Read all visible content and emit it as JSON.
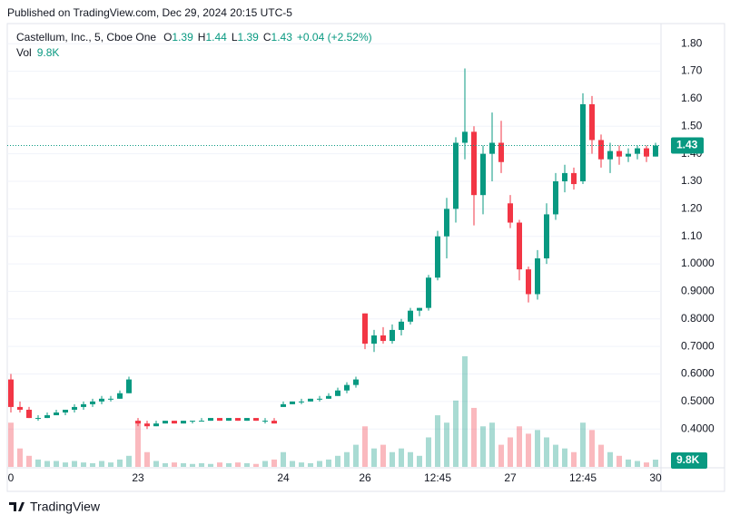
{
  "published": "Published on TradingView.com, Dec 29, 2024 20:15 UTC-5",
  "footer": "TradingView",
  "chart_data": {
    "type": "candlestick",
    "title": "Castellum, Inc., 5, Cboe One",
    "legend": [
      {
        "label": "O",
        "value": 1.39
      },
      {
        "label": "H",
        "value": 1.44
      },
      {
        "label": "L",
        "value": 1.39
      },
      {
        "label": "C",
        "value": 1.43
      }
    ],
    "change": "+0.04 (+2.52%)",
    "volume_title": "Vol",
    "volume_label": "9.8K",
    "up_color": "#089981",
    "down_color": "#f23645",
    "ylim": [
      0.18,
      1.86
    ],
    "yticks": [
      {
        "value": 0.4,
        "label": "0.4000"
      },
      {
        "value": 0.5,
        "label": "0.5000"
      },
      {
        "value": 0.6,
        "label": "0.6000"
      },
      {
        "value": 0.7,
        "label": "0.7000"
      },
      {
        "value": 0.8,
        "label": "0.8000"
      },
      {
        "value": 0.9,
        "label": "0.9000"
      },
      {
        "value": 1.0,
        "label": "1.0000"
      },
      {
        "value": 1.1,
        "label": "1.10"
      },
      {
        "value": 1.2,
        "label": "1.20"
      },
      {
        "value": 1.3,
        "label": "1.30"
      },
      {
        "value": 1.4,
        "label": "1.40"
      },
      {
        "value": 1.5,
        "label": "1.50"
      },
      {
        "value": 1.6,
        "label": "1.60"
      },
      {
        "value": 1.7,
        "label": "1.70"
      },
      {
        "value": 1.8,
        "label": "1.80"
      }
    ],
    "grid": true,
    "categories": [
      "0",
      null,
      null,
      null,
      null,
      null,
      null,
      null,
      null,
      null,
      null,
      null,
      null,
      null,
      "23",
      null,
      null,
      null,
      null,
      null,
      null,
      null,
      null,
      null,
      null,
      null,
      null,
      null,
      null,
      null,
      "24",
      null,
      null,
      null,
      null,
      null,
      null,
      null,
      null,
      "26",
      null,
      null,
      null,
      null,
      null,
      null,
      null,
      "12:45",
      null,
      null,
      null,
      null,
      null,
      null,
      null,
      "27",
      null,
      null,
      null,
      null,
      null,
      null,
      null,
      "12:45",
      null,
      null,
      null,
      null,
      null,
      null,
      null,
      "30"
    ],
    "open": [
      0.58,
      0.48,
      0.47,
      0.44,
      0.44,
      0.45,
      0.46,
      0.47,
      0.48,
      0.49,
      0.5,
      0.51,
      0.51,
      0.53,
      0.43,
      0.42,
      0.41,
      0.42,
      0.43,
      0.42,
      0.43,
      0.43,
      0.43,
      0.44,
      0.43,
      0.44,
      0.43,
      0.44,
      0.43,
      0.43,
      0.48,
      0.49,
      0.5,
      0.5,
      0.51,
      0.51,
      0.52,
      0.54,
      0.56,
      0.82,
      0.71,
      0.74,
      0.72,
      0.76,
      0.79,
      0.83,
      0.84,
      0.95,
      1.1,
      1.2,
      1.44,
      1.48,
      1.25,
      1.4,
      1.44,
      1.22,
      1.15,
      0.98,
      0.89,
      1.02,
      1.18,
      1.3,
      1.33,
      1.3,
      1.58,
      1.45,
      1.38,
      1.41,
      1.39,
      1.4,
      1.42,
      1.39
    ],
    "high": [
      0.6,
      0.5,
      0.48,
      0.45,
      0.46,
      0.47,
      0.47,
      0.49,
      0.5,
      0.51,
      0.52,
      0.52,
      0.54,
      0.59,
      0.44,
      0.43,
      0.43,
      0.43,
      0.43,
      0.43,
      0.43,
      0.44,
      0.44,
      0.44,
      0.44,
      0.44,
      0.44,
      0.44,
      0.44,
      0.44,
      0.5,
      0.5,
      0.51,
      0.51,
      0.52,
      0.53,
      0.55,
      0.57,
      0.59,
      0.82,
      0.76,
      0.77,
      0.78,
      0.8,
      0.84,
      0.84,
      0.96,
      1.12,
      1.24,
      1.46,
      1.71,
      1.5,
      1.43,
      1.55,
      1.52,
      1.25,
      1.16,
      0.99,
      1.05,
      1.22,
      1.33,
      1.36,
      1.35,
      1.62,
      1.61,
      1.47,
      1.44,
      1.43,
      1.42,
      1.43,
      1.43,
      1.44
    ],
    "low": [
      0.46,
      0.46,
      0.44,
      0.43,
      0.44,
      0.45,
      0.45,
      0.46,
      0.47,
      0.48,
      0.49,
      0.5,
      0.51,
      0.53,
      0.41,
      0.4,
      0.41,
      0.42,
      0.42,
      0.42,
      0.42,
      0.43,
      0.43,
      0.43,
      0.43,
      0.43,
      0.43,
      0.43,
      0.42,
      0.42,
      0.48,
      0.49,
      0.49,
      0.5,
      0.5,
      0.51,
      0.52,
      0.53,
      0.55,
      0.69,
      0.68,
      0.71,
      0.71,
      0.74,
      0.78,
      0.81,
      0.83,
      0.94,
      1.02,
      1.15,
      1.38,
      1.14,
      1.18,
      1.3,
      1.33,
      1.13,
      0.94,
      0.86,
      0.87,
      1.0,
      1.16,
      1.26,
      1.27,
      1.29,
      1.4,
      1.35,
      1.33,
      1.36,
      1.37,
      1.38,
      1.37,
      1.39
    ],
    "close": [
      0.48,
      0.47,
      0.44,
      0.44,
      0.45,
      0.46,
      0.47,
      0.48,
      0.49,
      0.5,
      0.51,
      0.51,
      0.53,
      0.58,
      0.42,
      0.41,
      0.42,
      0.43,
      0.42,
      0.43,
      0.43,
      0.43,
      0.44,
      0.43,
      0.44,
      0.43,
      0.44,
      0.43,
      0.43,
      0.42,
      0.49,
      0.5,
      0.5,
      0.51,
      0.51,
      0.52,
      0.54,
      0.56,
      0.58,
      0.71,
      0.74,
      0.72,
      0.76,
      0.79,
      0.83,
      0.84,
      0.95,
      1.1,
      1.2,
      1.44,
      1.48,
      1.25,
      1.4,
      1.44,
      1.37,
      1.15,
      0.98,
      0.89,
      1.02,
      1.18,
      1.3,
      1.33,
      1.29,
      1.58,
      1.45,
      1.38,
      1.41,
      1.39,
      1.4,
      1.42,
      1.39,
      1.43
    ],
    "volume": [
      60000,
      25000,
      15000,
      10000,
      8000,
      8000,
      6000,
      8000,
      6000,
      5000,
      8000,
      6000,
      10000,
      15000,
      60000,
      20000,
      8000,
      5000,
      6000,
      5000,
      4000,
      5000,
      4000,
      6000,
      5000,
      6000,
      5000,
      4000,
      8000,
      10000,
      20000,
      8000,
      6000,
      5000,
      8000,
      10000,
      15000,
      20000,
      30000,
      55000,
      25000,
      30000,
      20000,
      25000,
      20000,
      15000,
      40000,
      70000,
      60000,
      90000,
      150000,
      80000,
      55000,
      60000,
      30000,
      40000,
      55000,
      45000,
      50000,
      40000,
      30000,
      25000,
      20000,
      60000,
      50000,
      30000,
      20000,
      15000,
      10000,
      8000,
      6000,
      9800
    ]
  }
}
